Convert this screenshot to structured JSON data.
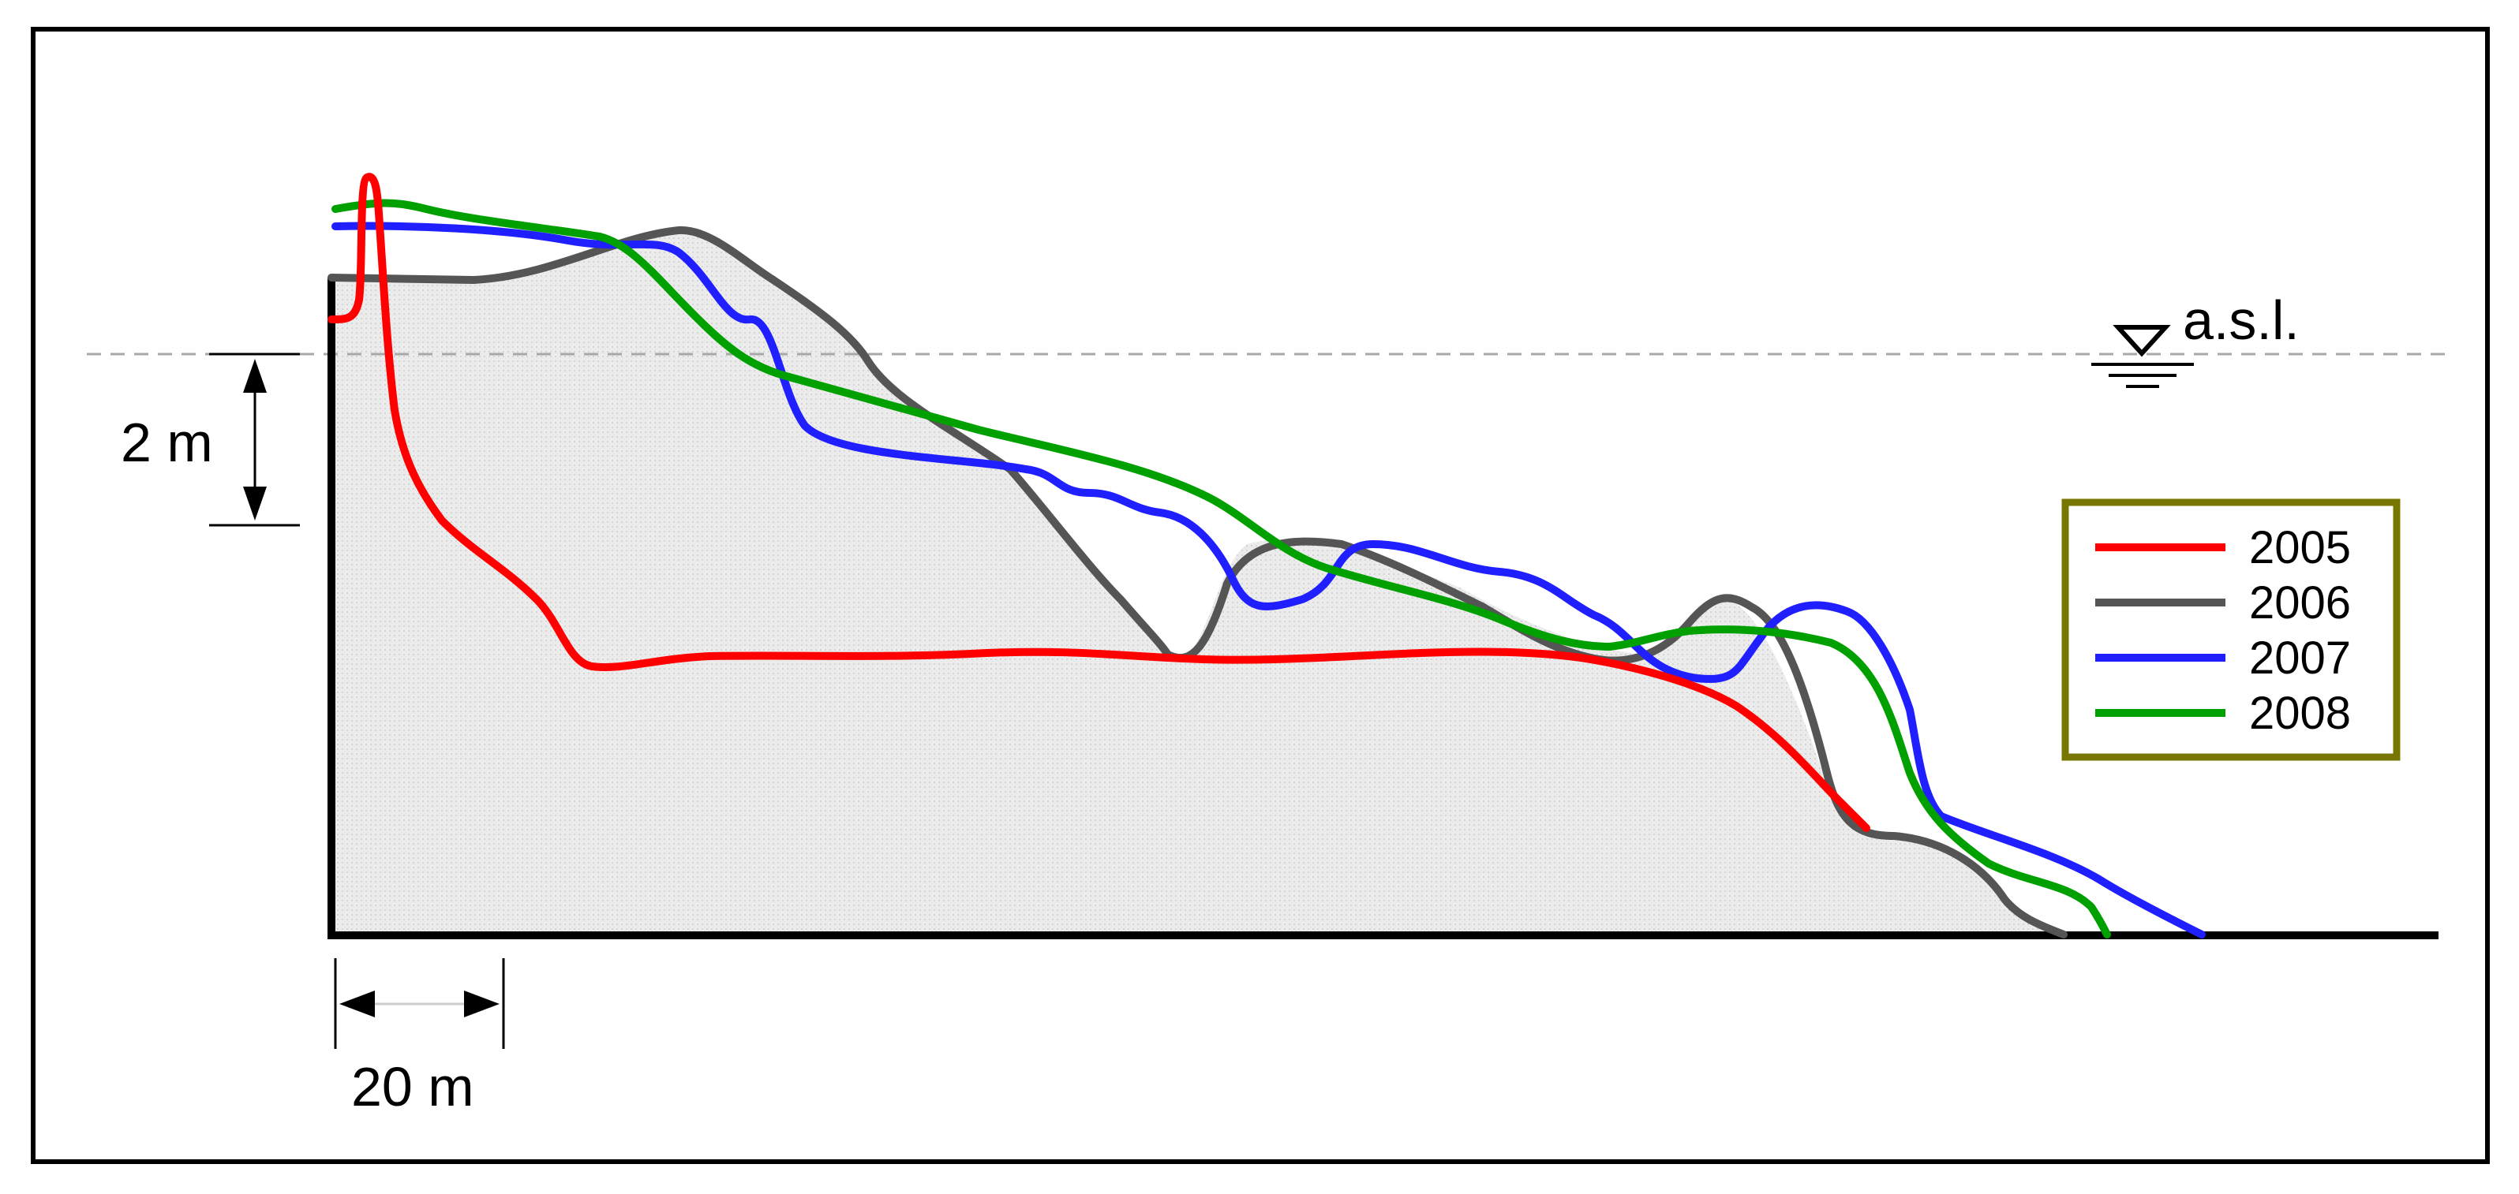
{
  "scale_bars": {
    "vertical": "2 m",
    "horizontal": "20 m"
  },
  "water_level": {
    "label": "a.s.l."
  },
  "legend": {
    "items": [
      {
        "label": "2005",
        "color": "#ff0000"
      },
      {
        "label": "2006",
        "color": "#555555"
      },
      {
        "label": "2007",
        "color": "#1f1fff"
      },
      {
        "label": "2008",
        "color": "#00a000"
      }
    ],
    "border_color": "#777700"
  },
  "colors": {
    "frame": "#000000",
    "terrain_fill": "#e6e6e6",
    "water_line": "#a0a0a0"
  }
}
